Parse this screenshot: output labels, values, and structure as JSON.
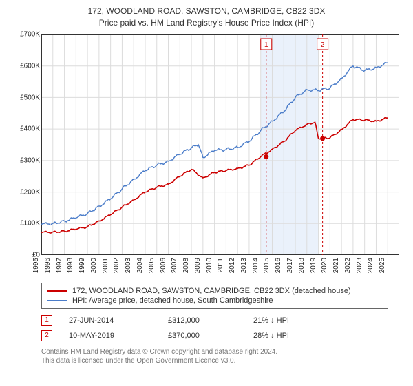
{
  "title_line1": "172, WOODLAND ROAD, SAWSTON, CAMBRIDGE, CB22 3DX",
  "title_line2": "Price paid vs. HM Land Registry's House Price Index (HPI)",
  "chart": {
    "type": "line",
    "background_color": "#ffffff",
    "grid_color": "#dcdcdc",
    "axis_color": "#333333",
    "x_start": 1995,
    "x_end": 2026,
    "x_tick_step": 1,
    "ylim": [
      0,
      700000
    ],
    "ytick_step": 100000,
    "y_tick_labels": [
      "£0",
      "£100K",
      "£200K",
      "£300K",
      "£400K",
      "£500K",
      "£600K",
      "£700K"
    ],
    "shaded_band": {
      "from": 2014,
      "to": 2019,
      "fill": "#eaf1fb"
    },
    "series": [
      {
        "id": "property",
        "label": "172, WOODLAND ROAD, SAWSTON, CAMBRIDGE, CB22 3DX (detached house)",
        "color": "#cc0000",
        "line_width": 1.6,
        "points": [
          [
            1995,
            72000
          ],
          [
            1996,
            73000
          ],
          [
            1997,
            76000
          ],
          [
            1998,
            82000
          ],
          [
            1999,
            90000
          ],
          [
            2000,
            108000
          ],
          [
            2001,
            128000
          ],
          [
            2002,
            152000
          ],
          [
            2003,
            175000
          ],
          [
            2004,
            200000
          ],
          [
            2005,
            215000
          ],
          [
            2006,
            225000
          ],
          [
            2007,
            250000
          ],
          [
            2008,
            272000
          ],
          [
            2009,
            245000
          ],
          [
            2010,
            262000
          ],
          [
            2011,
            268000
          ],
          [
            2012,
            275000
          ],
          [
            2013,
            285000
          ],
          [
            2014,
            312000
          ],
          [
            2015,
            336000
          ],
          [
            2016,
            360000
          ],
          [
            2017,
            395000
          ],
          [
            2018,
            415000
          ],
          [
            2018.7,
            422000
          ],
          [
            2019,
            370000
          ],
          [
            2020,
            372000
          ],
          [
            2021,
            398000
          ],
          [
            2022,
            430000
          ],
          [
            2023,
            428000
          ],
          [
            2024,
            425000
          ],
          [
            2025,
            435000
          ]
        ]
      },
      {
        "id": "hpi",
        "label": "HPI: Average price, detached house, South Cambridgeshire",
        "color": "#4a7cc9",
        "line_width": 1.4,
        "points": [
          [
            1995,
            98000
          ],
          [
            1996,
            100000
          ],
          [
            1997,
            108000
          ],
          [
            1998,
            118000
          ],
          [
            1999,
            132000
          ],
          [
            2000,
            155000
          ],
          [
            2001,
            178000
          ],
          [
            2002,
            210000
          ],
          [
            2003,
            240000
          ],
          [
            2004,
            268000
          ],
          [
            2005,
            285000
          ],
          [
            2006,
            298000
          ],
          [
            2007,
            320000
          ],
          [
            2008,
            340000
          ],
          [
            2008.6,
            350000
          ],
          [
            2009,
            310000
          ],
          [
            2010,
            332000
          ],
          [
            2011,
            335000
          ],
          [
            2012,
            342000
          ],
          [
            2013,
            360000
          ],
          [
            2014,
            395000
          ],
          [
            2015,
            425000
          ],
          [
            2016,
            455000
          ],
          [
            2017,
            500000
          ],
          [
            2018,
            525000
          ],
          [
            2019,
            522000
          ],
          [
            2020,
            530000
          ],
          [
            2021,
            560000
          ],
          [
            2022,
            600000
          ],
          [
            2023,
            585000
          ],
          [
            2024,
            595000
          ],
          [
            2025,
            610000
          ]
        ]
      }
    ],
    "markers": [
      {
        "n": "1",
        "x": 2014.48,
        "y": 312000,
        "vline_color": "#cc0000",
        "badge_border": "#cc0000",
        "badge_text": "#cc0000",
        "dot_color": "#cc0000"
      },
      {
        "n": "2",
        "x": 2019.36,
        "y": 370000,
        "vline_color": "#cc0000",
        "badge_border": "#cc0000",
        "badge_text": "#cc0000",
        "dot_color": "#cc0000"
      }
    ]
  },
  "legend": {
    "border_color": "#666666"
  },
  "sales": [
    {
      "n": "1",
      "date": "27-JUN-2014",
      "price": "£312,000",
      "delta": "21% ↓ HPI",
      "badge_border": "#cc0000",
      "badge_text": "#cc0000"
    },
    {
      "n": "2",
      "date": "10-MAY-2019",
      "price": "£370,000",
      "delta": "28% ↓ HPI",
      "badge_border": "#cc0000",
      "badge_text": "#cc0000"
    }
  ],
  "footnote_line1": "Contains HM Land Registry data © Crown copyright and database right 2024.",
  "footnote_line2": "This data is licensed under the Open Government Licence v3.0.",
  "cell_widths": {
    "date": "120px",
    "price": "100px",
    "delta": "120px"
  }
}
